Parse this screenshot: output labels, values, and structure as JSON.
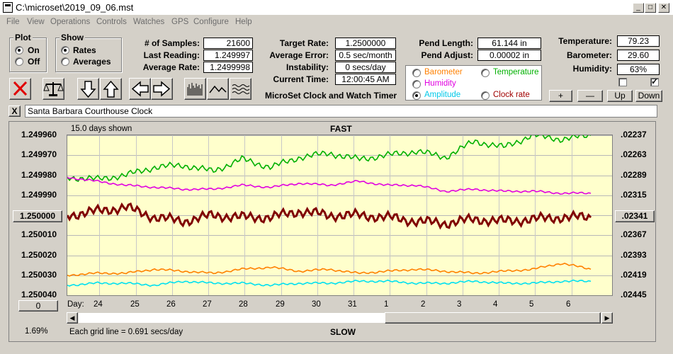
{
  "window": {
    "title": "C:\\microset\\2019_09_06.mst"
  },
  "menu": [
    "File",
    "View",
    "Operations",
    "Controls",
    "Watches",
    "GPS",
    "Configure",
    "Help"
  ],
  "plot_group": {
    "label": "Plot",
    "on": "On",
    "off": "Off",
    "selected": "On"
  },
  "show_group": {
    "label": "Show",
    "rates": "Rates",
    "averages": "Averages",
    "selected": "Rates"
  },
  "stats1": {
    "samples_label": "# of Samples:",
    "samples": "21600",
    "last_label": "Last Reading:",
    "last": "1.249997",
    "avg_label": "Average Rate:",
    "avg": "1.2499998"
  },
  "stats2": {
    "target_label": "Target Rate:",
    "target": "1.2500000",
    "err_label": "Average Error:",
    "err": "0.5 sec/month",
    "inst_label": "Instability:",
    "inst": "0 secs/day",
    "time_label": "Current Time:",
    "time": "12:00:45 AM"
  },
  "pend": {
    "len_label": "Pend Length:",
    "len": "61.144 in",
    "adj_label": "Pend Adjust:",
    "adj": "0.00002 in"
  },
  "env": {
    "temp_label": "Temperature:",
    "temp": "79.23",
    "baro_label": "Barometer:",
    "baro": "29.60",
    "hum_label": "Humidity:",
    "hum": "63%"
  },
  "sensor_radios": [
    {
      "label": "Barometer",
      "color": "#ff8000",
      "selected": false
    },
    {
      "label": "Temperature",
      "color": "#00b000",
      "selected": false
    },
    {
      "label": "Humidity",
      "color": "#e000e0",
      "selected": false
    },
    {
      "label": "Amplitude",
      "color": "#00c8e8",
      "selected": true
    },
    {
      "label": "Clock rate",
      "color": "#a00000",
      "selected": false
    }
  ],
  "app_caption": "MicroSet Clock and Watch Timer",
  "adj_buttons": {
    "plus": "+",
    "minus": "—",
    "up": "Up",
    "down": "Down"
  },
  "checkboxes": [
    false,
    true
  ],
  "clock_name": "Santa Barbara Courthouse Clock",
  "clear_button": "X",
  "chart_data": {
    "type": "line",
    "days_shown": "15.0 days shown",
    "top_label": "FAST",
    "bottom_label": "SLOW",
    "grid_note": "Each grid line = 0.691 secs/day",
    "percent": "1.69%",
    "left_button": "0",
    "center_left_value": "1.250000",
    "center_right_value": ".02341",
    "x_label": "Day:",
    "x_ticks": [
      "24",
      "25",
      "26",
      "27",
      "28",
      "29",
      "30",
      "31",
      "1",
      "2",
      "3",
      "4",
      "5",
      "6"
    ],
    "y_left_ticks": [
      "1.249960",
      "1.249970",
      "1.249980",
      "1.249990",
      "1.250000",
      "1.250010",
      "1.250020",
      "1.250030",
      "1.250040"
    ],
    "y_right_ticks": [
      ".02237",
      ".02263",
      ".02289",
      ".02315",
      ".02341",
      ".02367",
      ".02393",
      ".02419",
      ".02445"
    ],
    "series": [
      {
        "name": "Temperature",
        "color": "#00b000",
        "values": [
          1.249981,
          1.249982,
          1.24998,
          1.249976,
          1.249975,
          1.249978,
          1.249972,
          1.249976,
          1.249971,
          1.249969,
          1.249972,
          1.24997,
          1.249968,
          1.249971,
          1.249963,
          1.249966,
          1.24996,
          1.249962,
          1.24996
        ]
      },
      {
        "name": "Humidity",
        "color": "#e000e0",
        "values": [
          1.249981,
          1.249983,
          1.249985,
          1.249986,
          1.249987,
          1.249987,
          1.249985,
          1.249986,
          1.249984,
          1.249985,
          1.249983,
          1.249985,
          1.249985,
          1.249988,
          1.249987,
          1.249988,
          1.249988,
          1.249989,
          1.249989
        ]
      },
      {
        "name": "Clock rate",
        "color": "#800000",
        "values": [
          1.25,
          1.249998,
          1.249996,
          1.250001,
          1.250003,
          1.25,
          1.250001,
          1.250001,
          1.249998,
          1.25,
          1.25,
          1.250001,
          1.250003,
          1.250004,
          1.250002,
          1.250003,
          1.250002,
          1.250001,
          1.250001
        ]
      },
      {
        "name": "Barometer",
        "color": "#ff8000",
        "values": [
          1.25003,
          1.250029,
          1.250029,
          1.250027,
          1.250028,
          1.250029,
          1.250027,
          1.250026,
          1.250028,
          1.250027,
          1.250029,
          1.250028,
          1.250027,
          1.250028,
          1.250029,
          1.250028,
          1.250027,
          1.250024,
          1.250027
        ]
      },
      {
        "name": "Amplitude",
        "color": "#00e0f0",
        "values": [
          1.250035,
          1.250034,
          1.250034,
          1.250035,
          1.250033,
          1.250034,
          1.250034,
          1.250035,
          1.250034,
          1.250034,
          1.250033,
          1.250033,
          1.250034,
          1.250034,
          1.250033,
          1.250034,
          1.250034,
          1.250033,
          1.250033
        ]
      }
    ]
  }
}
